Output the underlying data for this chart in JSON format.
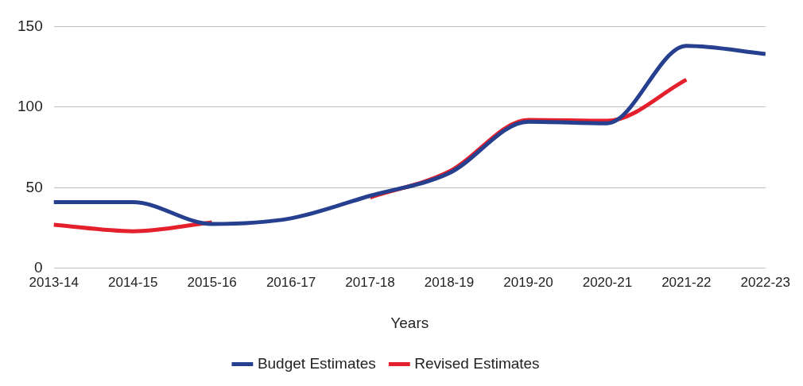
{
  "chart_data": {
    "type": "line",
    "xlabel": "Years",
    "categories": [
      "2013-14",
      "2014-15",
      "2015-16",
      "2016-17",
      "2017-18",
      "2018-19",
      "2019-20",
      "2020-21",
      "2021-22",
      "2022-23"
    ],
    "series": [
      {
        "name": "Budget Estimates",
        "color": "#263f8f",
        "values": [
          41,
          41,
          27.5,
          31,
          45,
          59,
          91,
          90,
          138,
          133
        ]
      },
      {
        "name": "Revised Estimates",
        "color": "#e3202b",
        "values": [
          27,
          23,
          28.5,
          null,
          44,
          60,
          92,
          91.5,
          117,
          null
        ]
      }
    ],
    "ylim": [
      0,
      150
    ],
    "yticks": [
      0,
      50,
      100,
      150
    ],
    "grid": "y",
    "legend": "bottom",
    "marker": "none",
    "line_style": "solid"
  }
}
